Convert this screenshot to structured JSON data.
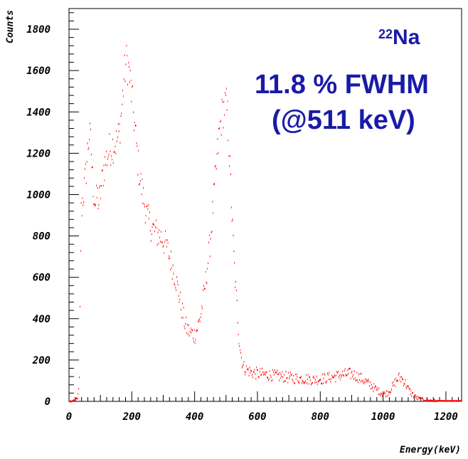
{
  "chart_data": {
    "type": "line",
    "title": "",
    "xlabel": "Energy(keV)",
    "ylabel": "Counts",
    "xlim": [
      0,
      1250
    ],
    "ylim": [
      0,
      1900
    ],
    "x_ticks": [
      0,
      200,
      400,
      600,
      800,
      1000,
      1200
    ],
    "y_ticks": [
      0,
      200,
      400,
      600,
      800,
      1000,
      1200,
      1400,
      1600,
      1800
    ],
    "series": [
      {
        "color": "#ff0000",
        "style": "dashed histogram",
        "points": [
          [
            0,
            0
          ],
          [
            5,
            0
          ],
          [
            10,
            0
          ],
          [
            15,
            5
          ],
          [
            20,
            8
          ],
          [
            25,
            12
          ],
          [
            30,
            30
          ],
          [
            33,
            100
          ],
          [
            36,
            600
          ],
          [
            38,
            900
          ],
          [
            42,
            960
          ],
          [
            48,
            1020
          ],
          [
            55,
            1120
          ],
          [
            60,
            1230
          ],
          [
            65,
            1290
          ],
          [
            70,
            1240
          ],
          [
            75,
            1080
          ],
          [
            80,
            990
          ],
          [
            85,
            950
          ],
          [
            90,
            1000
          ],
          [
            95,
            960
          ],
          [
            100,
            1000
          ],
          [
            105,
            1060
          ],
          [
            110,
            1120
          ],
          [
            115,
            1150
          ],
          [
            120,
            1180
          ],
          [
            130,
            1220
          ],
          [
            140,
            1240
          ],
          [
            150,
            1250
          ],
          [
            160,
            1290
          ],
          [
            170,
            1450
          ],
          [
            175,
            1560
          ],
          [
            180,
            1620
          ],
          [
            185,
            1650
          ],
          [
            190,
            1600
          ],
          [
            195,
            1540
          ],
          [
            200,
            1480
          ],
          [
            210,
            1320
          ],
          [
            220,
            1150
          ],
          [
            230,
            1040
          ],
          [
            240,
            960
          ],
          [
            250,
            890
          ],
          [
            260,
            850
          ],
          [
            270,
            830
          ],
          [
            280,
            810
          ],
          [
            290,
            800
          ],
          [
            300,
            780
          ],
          [
            310,
            750
          ],
          [
            320,
            700
          ],
          [
            330,
            650
          ],
          [
            340,
            590
          ],
          [
            350,
            520
          ],
          [
            360,
            440
          ],
          [
            370,
            370
          ],
          [
            380,
            340
          ],
          [
            390,
            330
          ],
          [
            400,
            320
          ],
          [
            410,
            360
          ],
          [
            420,
            420
          ],
          [
            430,
            520
          ],
          [
            440,
            640
          ],
          [
            450,
            780
          ],
          [
            460,
            960
          ],
          [
            470,
            1150
          ],
          [
            480,
            1320
          ],
          [
            490,
            1410
          ],
          [
            500,
            1440
          ],
          [
            505,
            1380
          ],
          [
            510,
            1220
          ],
          [
            515,
            1050
          ],
          [
            520,
            860
          ],
          [
            525,
            700
          ],
          [
            530,
            560
          ],
          [
            535,
            460
          ],
          [
            540,
            330
          ],
          [
            545,
            260
          ],
          [
            550,
            200
          ],
          [
            555,
            170
          ],
          [
            560,
            160
          ],
          [
            570,
            150
          ],
          [
            580,
            140
          ],
          [
            600,
            135
          ],
          [
            620,
            130
          ],
          [
            650,
            125
          ],
          [
            680,
            120
          ],
          [
            700,
            115
          ],
          [
            720,
            112
          ],
          [
            740,
            110
          ],
          [
            760,
            108
          ],
          [
            780,
            105
          ],
          [
            800,
            108
          ],
          [
            820,
            112
          ],
          [
            840,
            118
          ],
          [
            860,
            125
          ],
          [
            880,
            130
          ],
          [
            900,
            133
          ],
          [
            920,
            120
          ],
          [
            940,
            100
          ],
          [
            960,
            80
          ],
          [
            980,
            55
          ],
          [
            1000,
            35
          ],
          [
            1010,
            38
          ],
          [
            1020,
            50
          ],
          [
            1030,
            70
          ],
          [
            1040,
            95
          ],
          [
            1050,
            115
          ],
          [
            1060,
            110
          ],
          [
            1070,
            90
          ],
          [
            1080,
            60
          ],
          [
            1090,
            40
          ],
          [
            1100,
            25
          ],
          [
            1110,
            15
          ],
          [
            1120,
            10
          ],
          [
            1140,
            5
          ],
          [
            1170,
            3
          ],
          [
            1200,
            2
          ],
          [
            1250,
            2
          ]
        ]
      }
    ]
  },
  "annotations": {
    "isotope_mass": "22",
    "isotope_symbol": "Na",
    "fwhm": "11.8 % FWHM",
    "energy": "(@511 keV)",
    "color": "#1a1aa8"
  }
}
